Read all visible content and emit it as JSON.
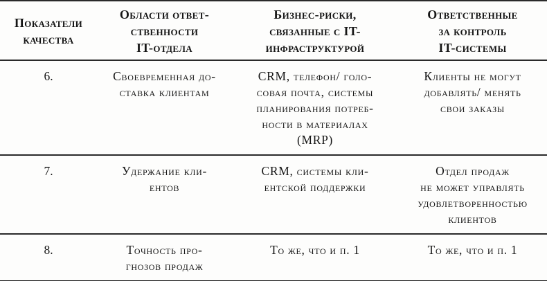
{
  "colors": {
    "text": "#161616",
    "rule": "#2a2a2a",
    "background": "#fdfdfc"
  },
  "table": {
    "headers": [
      "Показатели\nкачества",
      "Области ответ-\nственности\nIT-отдела",
      "Бизнес-риски,\nсвязанные с IT-\nинфраструктурой",
      "Ответственные\nза контроль\nIT-системы"
    ],
    "rows": [
      {
        "num": "6.",
        "responsibility": "Своевременная до-\nставка клиентам",
        "risks": "CRM, телефон/ голо-\nсовая почта, системы\nпланирования потреб-\nности в материалах\n(MRP)",
        "control": "Клиенты не могут\nдобавлять/ менять\nсвои заказы"
      },
      {
        "num": "7.",
        "responsibility": "Удержание кли-\nентов",
        "risks": "CRM, системы кли-\nентской поддержки",
        "control": "Отдел продаж\nне может управлять\nудовлетворенностью\nклиентов"
      },
      {
        "num": "8.",
        "responsibility": "Точность про-\nгнозов продаж",
        "risks": "То же, что и п. 1",
        "control": "То же, что и п. 1"
      }
    ]
  }
}
